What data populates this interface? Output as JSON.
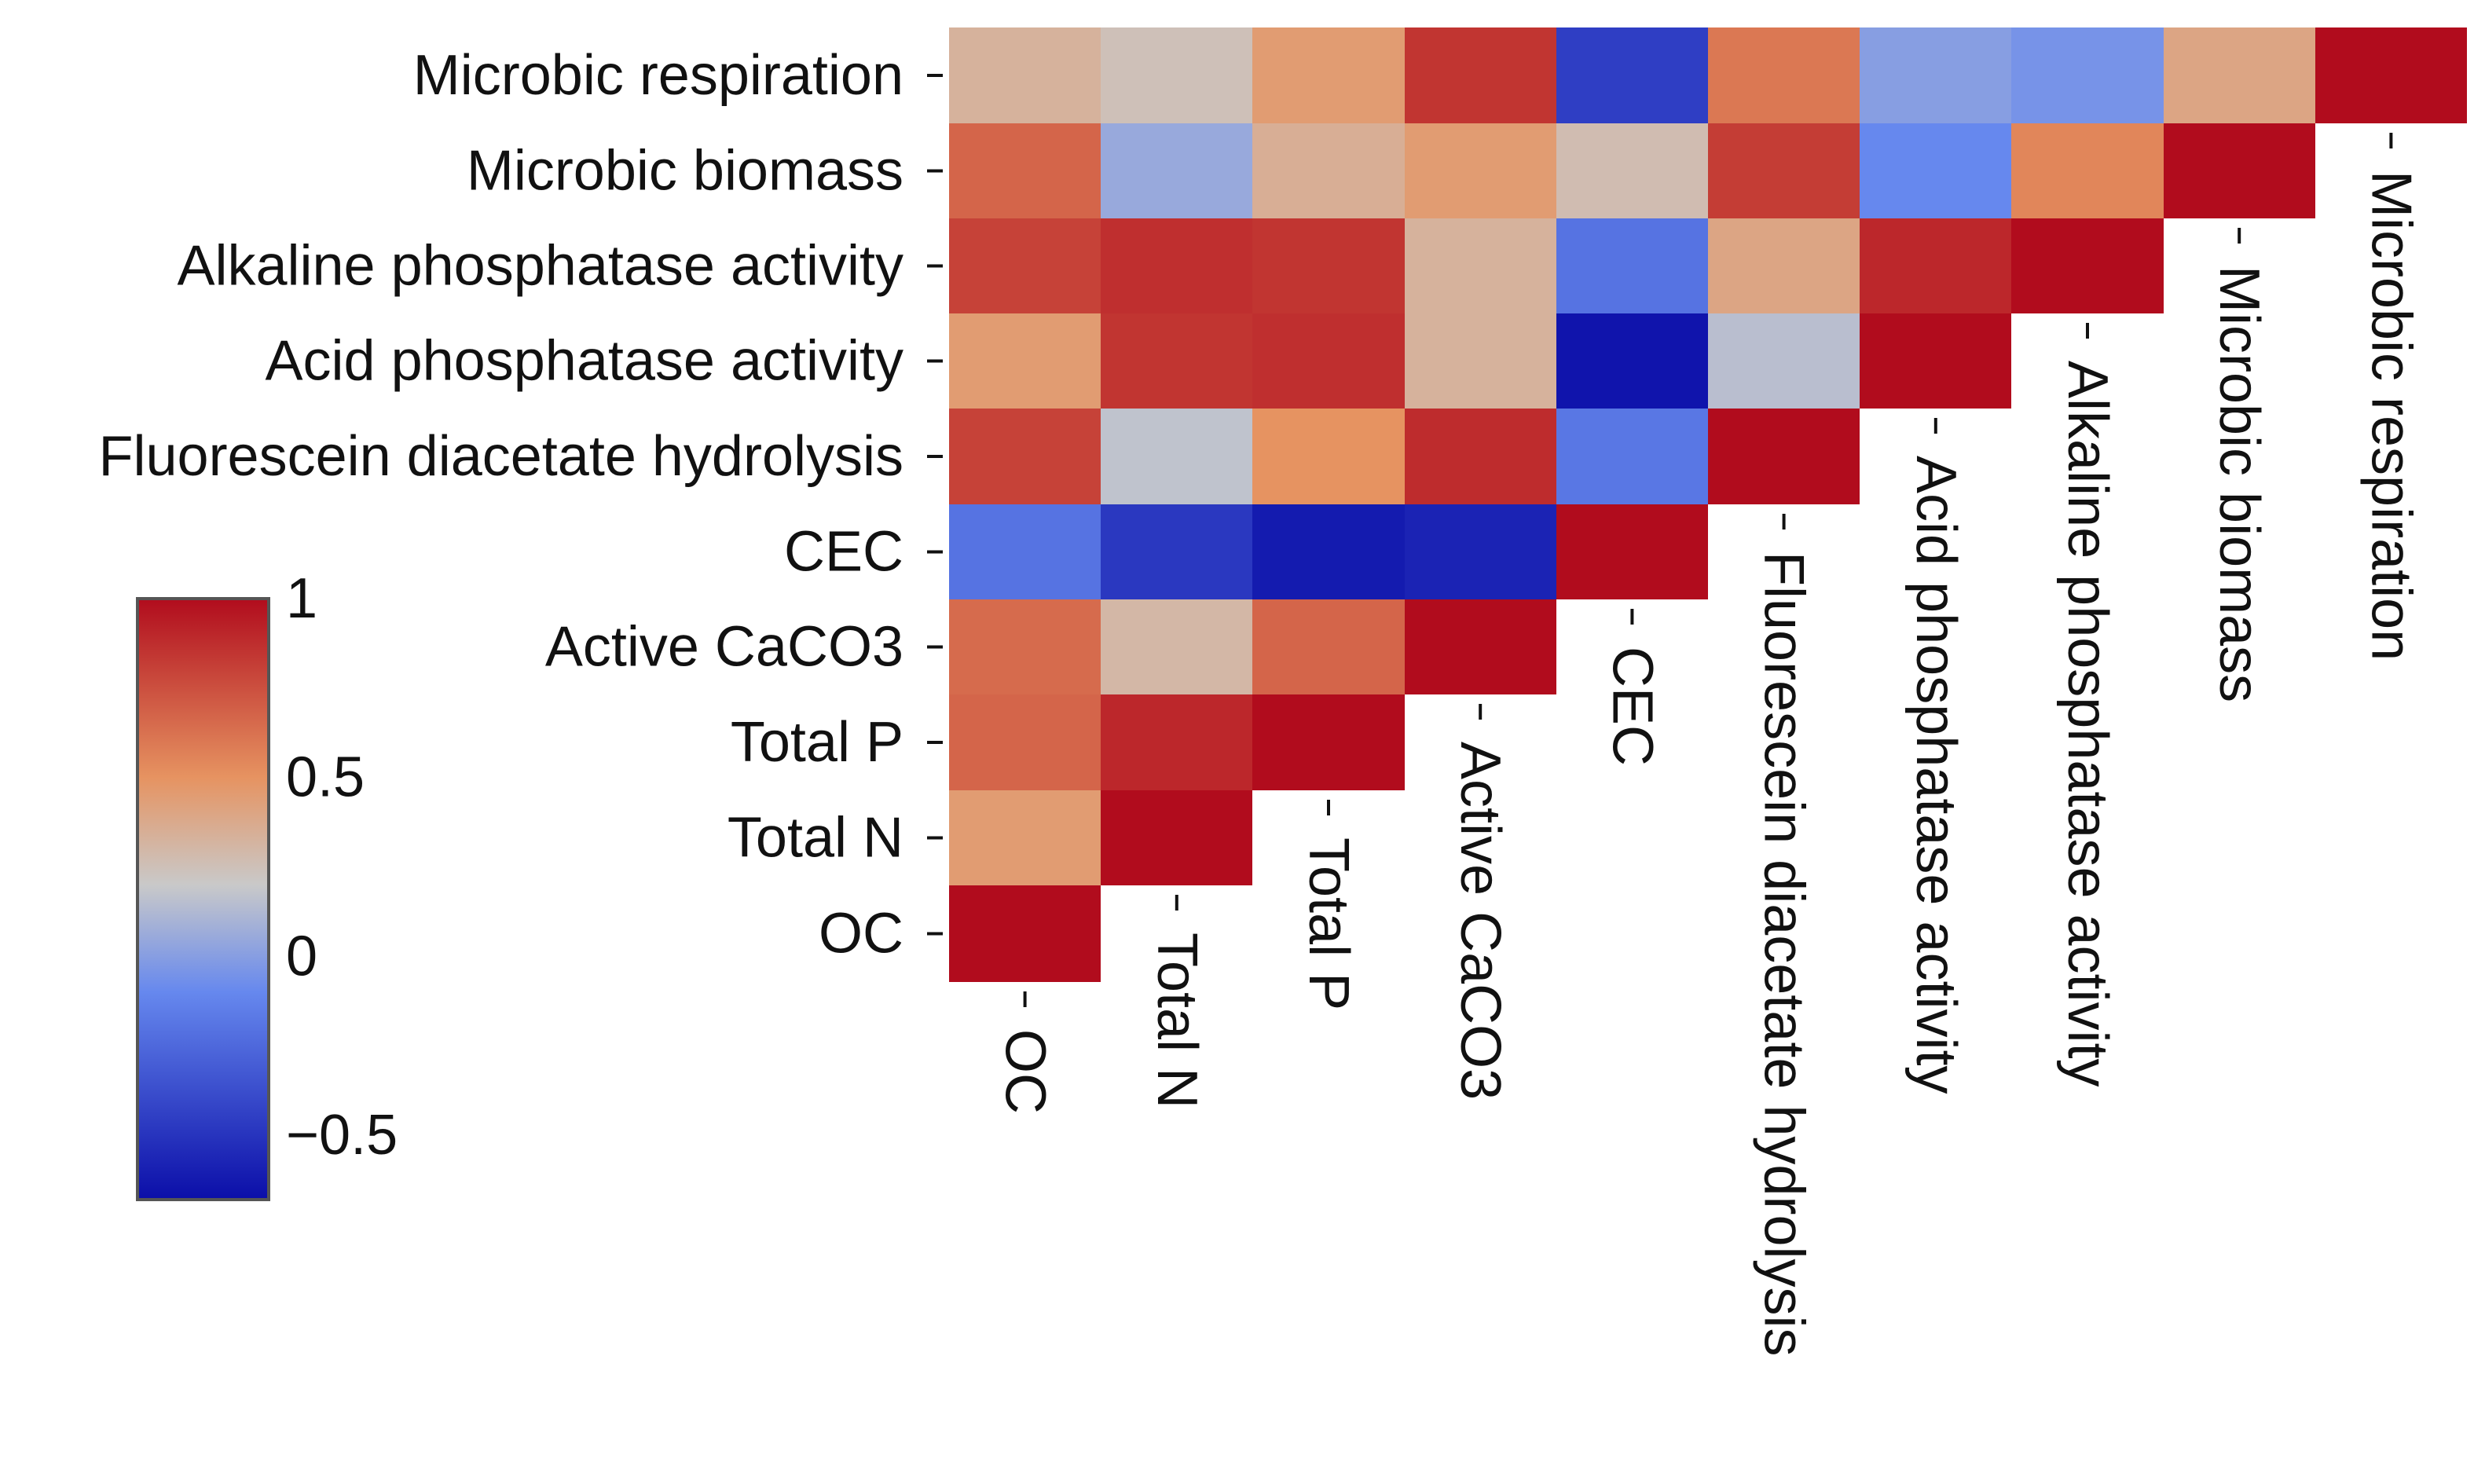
{
  "chart_data": {
    "type": "heatmap",
    "title": "",
    "variables": [
      "OC",
      "Total N",
      "Total P",
      "Active CaCO3",
      "CEC",
      "Fluorescein diacetate hydrolysis",
      "Acid phosphatase activity",
      "Alkaline phosphatase activity",
      "Microbic biomass",
      "Microbic respiration"
    ],
    "row_labels": [
      "Microbic respiration",
      "Microbic biomass",
      "Alkaline phosphatase activity",
      "Acid phosphatase activity",
      "Fluorescein diacetate hydrolysis",
      "CEC",
      "Active CaCO3",
      "Total P",
      "Total N",
      "OC"
    ],
    "matrix": [
      [
        1,
        0.45,
        0.67,
        0.65,
        -0.2,
        0.8,
        0.45,
        0.8,
        0.67,
        0.33
      ],
      [
        0.45,
        1,
        0.9,
        0.3,
        -0.48,
        0.17,
        0.85,
        0.87,
        0.05,
        0.25
      ],
      [
        0.67,
        0.9,
        1,
        0.67,
        -0.62,
        0.5,
        0.87,
        0.85,
        0.35,
        0.45
      ],
      [
        0.65,
        0.3,
        0.67,
        1,
        -0.58,
        0.88,
        0.33,
        0.33,
        0.45,
        0.85
      ],
      [
        -0.2,
        -0.48,
        -0.62,
        -0.58,
        1,
        -0.18,
        -0.65,
        -0.2,
        0.27,
        -0.45
      ],
      [
        0.8,
        0.17,
        0.5,
        0.88,
        -0.18,
        1,
        0.15,
        0.4,
        0.82,
        0.6
      ],
      [
        0.45,
        0.85,
        0.87,
        0.33,
        -0.65,
        0.15,
        1,
        0.9,
        -0.1,
        0.0
      ],
      [
        0.8,
        0.87,
        0.85,
        0.33,
        -0.2,
        0.4,
        0.9,
        1,
        0.55,
        -0.05
      ],
      [
        0.67,
        0.05,
        0.35,
        0.45,
        0.27,
        0.82,
        -0.1,
        0.55,
        1,
        0.4
      ],
      [
        0.33,
        0.25,
        0.45,
        0.85,
        -0.45,
        0.6,
        0.0,
        -0.05,
        0.4,
        1
      ]
    ],
    "colorbar": {
      "vmin": -0.68,
      "vmax": 1,
      "ticks": [
        "1",
        "0.5",
        "0",
        "−0.5"
      ],
      "tick_values": [
        1,
        0.5,
        0,
        -0.5
      ],
      "colors": [
        "#0b0ea8",
        "#6688ee",
        "#c9c9c9",
        "#e69361",
        "#b10c1d"
      ],
      "color_stops": [
        -0.68,
        -0.1,
        0.2,
        0.5,
        1
      ]
    },
    "xlabel": "",
    "ylabel": ""
  }
}
